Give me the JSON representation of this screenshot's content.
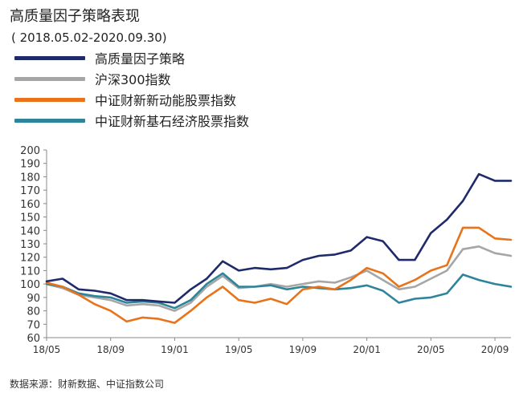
{
  "title": "高质量因子策略表现",
  "subtitle": "( 2018.05.02-2020.09.30)",
  "source": "数据来源：财新数据、中证指数公司",
  "chart_data": {
    "type": "line",
    "title": "高质量因子策略表现",
    "subtitle": "( 2018.05.02-2020.09.30)",
    "xlabel": "",
    "ylabel": "",
    "ylim": [
      60,
      200
    ],
    "yticks": [
      60,
      70,
      80,
      90,
      100,
      110,
      120,
      130,
      140,
      150,
      160,
      170,
      180,
      190,
      200
    ],
    "xlim": [
      "2018-05",
      "2020-10"
    ],
    "xticks": [
      {
        "x": "2018-05",
        "label": "18/05"
      },
      {
        "x": "2018-09",
        "label": "18/09"
      },
      {
        "x": "2019-01",
        "label": "19/01"
      },
      {
        "x": "2019-05",
        "label": "19/05"
      },
      {
        "x": "2019-09",
        "label": "19/09"
      },
      {
        "x": "2020-01",
        "label": "20/01"
      },
      {
        "x": "2020-05",
        "label": "20/05"
      },
      {
        "x": "2020-09",
        "label": "20/09"
      }
    ],
    "grid": false,
    "legend": "top-left",
    "x": [
      "2018-05",
      "2018-06",
      "2018-07",
      "2018-08",
      "2018-09",
      "2018-10",
      "2018-11",
      "2018-12",
      "2019-01",
      "2019-02",
      "2019-03",
      "2019-04",
      "2019-05",
      "2019-06",
      "2019-07",
      "2019-08",
      "2019-09",
      "2019-10",
      "2019-11",
      "2019-12",
      "2020-01",
      "2020-02",
      "2020-03",
      "2020-04",
      "2020-05",
      "2020-06",
      "2020-07",
      "2020-08",
      "2020-09",
      "2020-10"
    ],
    "series": [
      {
        "name": "高质量因子策略",
        "color": "#1f2a6b",
        "values": [
          102,
          104,
          96,
          95,
          93,
          88,
          88,
          87,
          86,
          96,
          104,
          117,
          110,
          112,
          111,
          112,
          118,
          121,
          122,
          125,
          135,
          132,
          118,
          118,
          138,
          148,
          162,
          182,
          177,
          177
        ]
      },
      {
        "name": "沪深300指数",
        "color": "#a6a6a6",
        "values": [
          100,
          97,
          92,
          90,
          88,
          84,
          85,
          84,
          80,
          86,
          98,
          106,
          97,
          98,
          100,
          98,
          100,
          102,
          101,
          105,
          110,
          103,
          96,
          98,
          104,
          110,
          126,
          128,
          123,
          121
        ]
      },
      {
        "name": "中证财新新动能股票指数",
        "color": "#e8731a",
        "values": [
          101,
          98,
          92,
          85,
          80,
          72,
          75,
          74,
          71,
          80,
          90,
          98,
          88,
          86,
          89,
          85,
          96,
          98,
          96,
          103,
          112,
          108,
          98,
          103,
          110,
          114,
          142,
          142,
          134,
          133
        ]
      },
      {
        "name": "中证财新基石经济股票指数",
        "color": "#2e8599",
        "values": [
          100,
          98,
          93,
          91,
          90,
          86,
          87,
          86,
          82,
          88,
          100,
          108,
          98,
          98,
          99,
          96,
          98,
          97,
          96,
          97,
          99,
          95,
          86,
          89,
          90,
          93,
          107,
          103,
          100,
          98
        ]
      }
    ]
  }
}
